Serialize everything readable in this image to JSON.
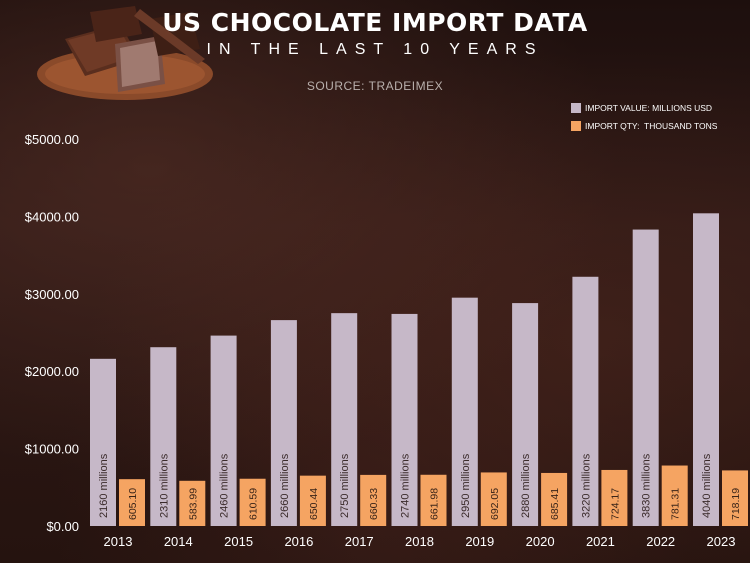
{
  "header": {
    "title": "US CHOCOLATE IMPORT DATA",
    "subtitle": "IN THE LAST 10 YEARS",
    "source": "SOURCE: TRADEIMEX"
  },
  "legend": [
    {
      "label": "IMPORT VALUE: MILLIONS USD",
      "color": "#c6b8c8"
    },
    {
      "label": "IMPORT QTY:  THOUSAND TONS",
      "color": "#f5a462"
    }
  ],
  "chart_data": {
    "type": "bar",
    "title": "US CHOCOLATE IMPORT DATA",
    "subtitle": "IN THE LAST 10 YEARS",
    "categories": [
      "2013",
      "2014",
      "2015",
      "2016",
      "2017",
      "2018",
      "2019",
      "2020",
      "2021",
      "2022",
      "2023"
    ],
    "series": [
      {
        "name": "IMPORT VALUE: MILLIONS USD",
        "color": "#c6b8c8",
        "values": [
          2160,
          2310,
          2460,
          2660,
          2750,
          2740,
          2950,
          2880,
          3220,
          3830,
          4040
        ],
        "labels": [
          "2160  millions",
          "2310  millions",
          "2460 millions",
          "2660 millions",
          "2750 millions",
          "2740 millions",
          "2950 millions",
          "2880 millions",
          "3220 millions",
          "3830 millions",
          "4040 millions"
        ]
      },
      {
        "name": "IMPORT QTY:  THOUSAND TONS",
        "color": "#f5a462",
        "values": [
          605.1,
          583.99,
          610.59,
          650.44,
          660.33,
          661.98,
          692.05,
          685.41,
          724.17,
          781.31,
          718.19
        ],
        "labels": [
          "605.10",
          "583.99",
          "610.59",
          "650.44",
          "660.33",
          "661.98",
          "692.05",
          "685.41",
          "724.17",
          "781.31",
          "718.19"
        ]
      }
    ],
    "y_ticks": [
      "$0.00",
      "$1000.00",
      "$2000.00",
      "$3000.00",
      "$4000.00",
      "$5000.00"
    ],
    "ylim": [
      0,
      5000
    ],
    "grid": false,
    "legend_position": "top-right",
    "xlabel": "",
    "ylabel": ""
  }
}
